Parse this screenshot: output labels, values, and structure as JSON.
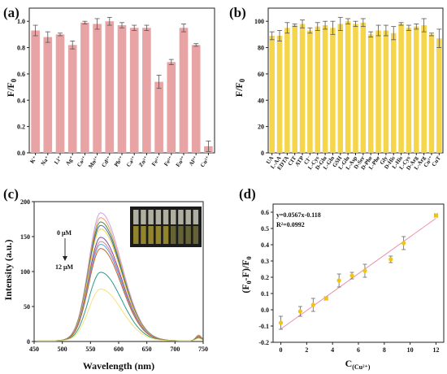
{
  "chart_data": [
    {
      "panel": "(a)",
      "type": "bar",
      "ylabel": "F/F0",
      "ylim": [
        0.0,
        1.1
      ],
      "yticks": [
        "0.0",
        "0.2",
        "0.4",
        "0.6",
        "0.8",
        "1.0"
      ],
      "categories": [
        "K⁺",
        "Na⁺",
        "Li⁺",
        "Ag⁺",
        "Co²⁺",
        "Mn²⁺",
        "Cd²⁺",
        "Pb²⁺",
        "Ca²⁺",
        "Zn²⁺",
        "Fe²⁺",
        "Fe³⁺",
        "Eu³⁺",
        "Al³⁺",
        "Cu²⁺"
      ],
      "values": [
        0.93,
        0.88,
        0.9,
        0.82,
        0.99,
        0.98,
        1.0,
        0.97,
        0.95,
        0.95,
        0.54,
        0.69,
        0.95,
        0.82,
        0.05
      ],
      "errors": [
        0.04,
        0.04,
        0.01,
        0.03,
        0.01,
        0.04,
        0.03,
        0.02,
        0.02,
        0.02,
        0.05,
        0.02,
        0.03,
        0.01,
        0.04
      ],
      "color": "#e8a4a4"
    },
    {
      "panel": "(b)",
      "type": "bar",
      "ylabel": "F/F0",
      "ylim": [
        0,
        110
      ],
      "yticks": [
        "0",
        "20",
        "40",
        "60",
        "80",
        "100"
      ],
      "categories": [
        "UA",
        "L-AA",
        "EDTA",
        "CIT",
        "ATP",
        "Cl⁻",
        "L-Cys",
        "D-Glu",
        "L-Gln",
        "GSH",
        "L-Glu",
        "L-Asp",
        "D-Ser",
        "D-Phe",
        "L-Phe",
        "Gly",
        "D-His",
        "L-His",
        "L-Cys",
        "D-Arg",
        "L-Arg",
        "Cu²⁺",
        "CuT"
      ],
      "values": [
        89,
        89,
        95,
        97,
        98,
        93,
        96,
        97,
        95,
        98,
        100,
        98,
        99,
        90,
        93,
        93,
        91,
        98,
        95,
        96,
        97,
        90,
        87
      ],
      "errors": [
        3,
        4,
        4,
        1,
        3,
        2,
        3,
        3,
        5,
        5,
        2,
        2,
        3,
        2,
        4,
        4,
        5,
        1,
        2,
        2,
        5,
        1,
        7
      ],
      "color": "#f5d54a"
    },
    {
      "panel": "(c)",
      "type": "line",
      "xlabel": "Wavelength (nm)",
      "ylabel": "Intensity (a.u.)",
      "xlim": [
        450,
        750
      ],
      "ylim": [
        0,
        200
      ],
      "xticks": [
        "450",
        "500",
        "550",
        "600",
        "650",
        "700",
        "750"
      ],
      "yticks": [
        "0",
        "50",
        "100",
        "150",
        "200"
      ],
      "annotation_top": "0 μM",
      "annotation_bottom": "12 μM",
      "peak_nm": 568,
      "series": [
        {
          "peak": 183,
          "color": "#c8a2e8"
        },
        {
          "peak": 176,
          "color": "#f0a070"
        },
        {
          "peak": 170,
          "color": "#4a8a3a"
        },
        {
          "peak": 165,
          "color": "#4a6fb0"
        },
        {
          "peak": 160,
          "color": "#f2d44a"
        },
        {
          "peak": 148,
          "color": "#7a4fa0"
        },
        {
          "peak": 142,
          "color": "#f07a9a"
        },
        {
          "peak": 138,
          "color": "#5aa8d8"
        },
        {
          "peak": 132,
          "color": "#c86428"
        },
        {
          "peak": 98,
          "color": "#2a9a8a"
        },
        {
          "peak": 74,
          "color": "#f5e27a"
        }
      ]
    },
    {
      "panel": "(d)",
      "type": "scatter",
      "xlabel": "C(Cu²⁺)",
      "ylabel": "(F0-F)/F0",
      "xlim": [
        -0.6,
        12.6
      ],
      "ylim": [
        -0.2,
        0.65
      ],
      "xticks": [
        "0",
        "2",
        "4",
        "6",
        "8",
        "10",
        "12"
      ],
      "yticks": [
        "-0.2",
        "-0.1",
        "0.0",
        "0.1",
        "0.2",
        "0.3",
        "0.4",
        "0.5",
        "0.6"
      ],
      "equation": "y=0.0567x-0.118",
      "r2": "R²=0.0992",
      "fit": {
        "slope": 0.0567,
        "intercept": -0.118
      },
      "x": [
        0,
        1.5,
        2.5,
        3.5,
        4.5,
        5.5,
        6.5,
        8.5,
        9.5,
        12
      ],
      "y": [
        -0.08,
        -0.01,
        0.03,
        0.07,
        0.18,
        0.21,
        0.24,
        0.31,
        0.41,
        0.58
      ],
      "errors": [
        0.04,
        0.03,
        0.04,
        0.01,
        0.04,
        0.02,
        0.04,
        0.02,
        0.04,
        0.01
      ],
      "point_color": "#f2c40a",
      "line_color": "#e890b0"
    }
  ]
}
